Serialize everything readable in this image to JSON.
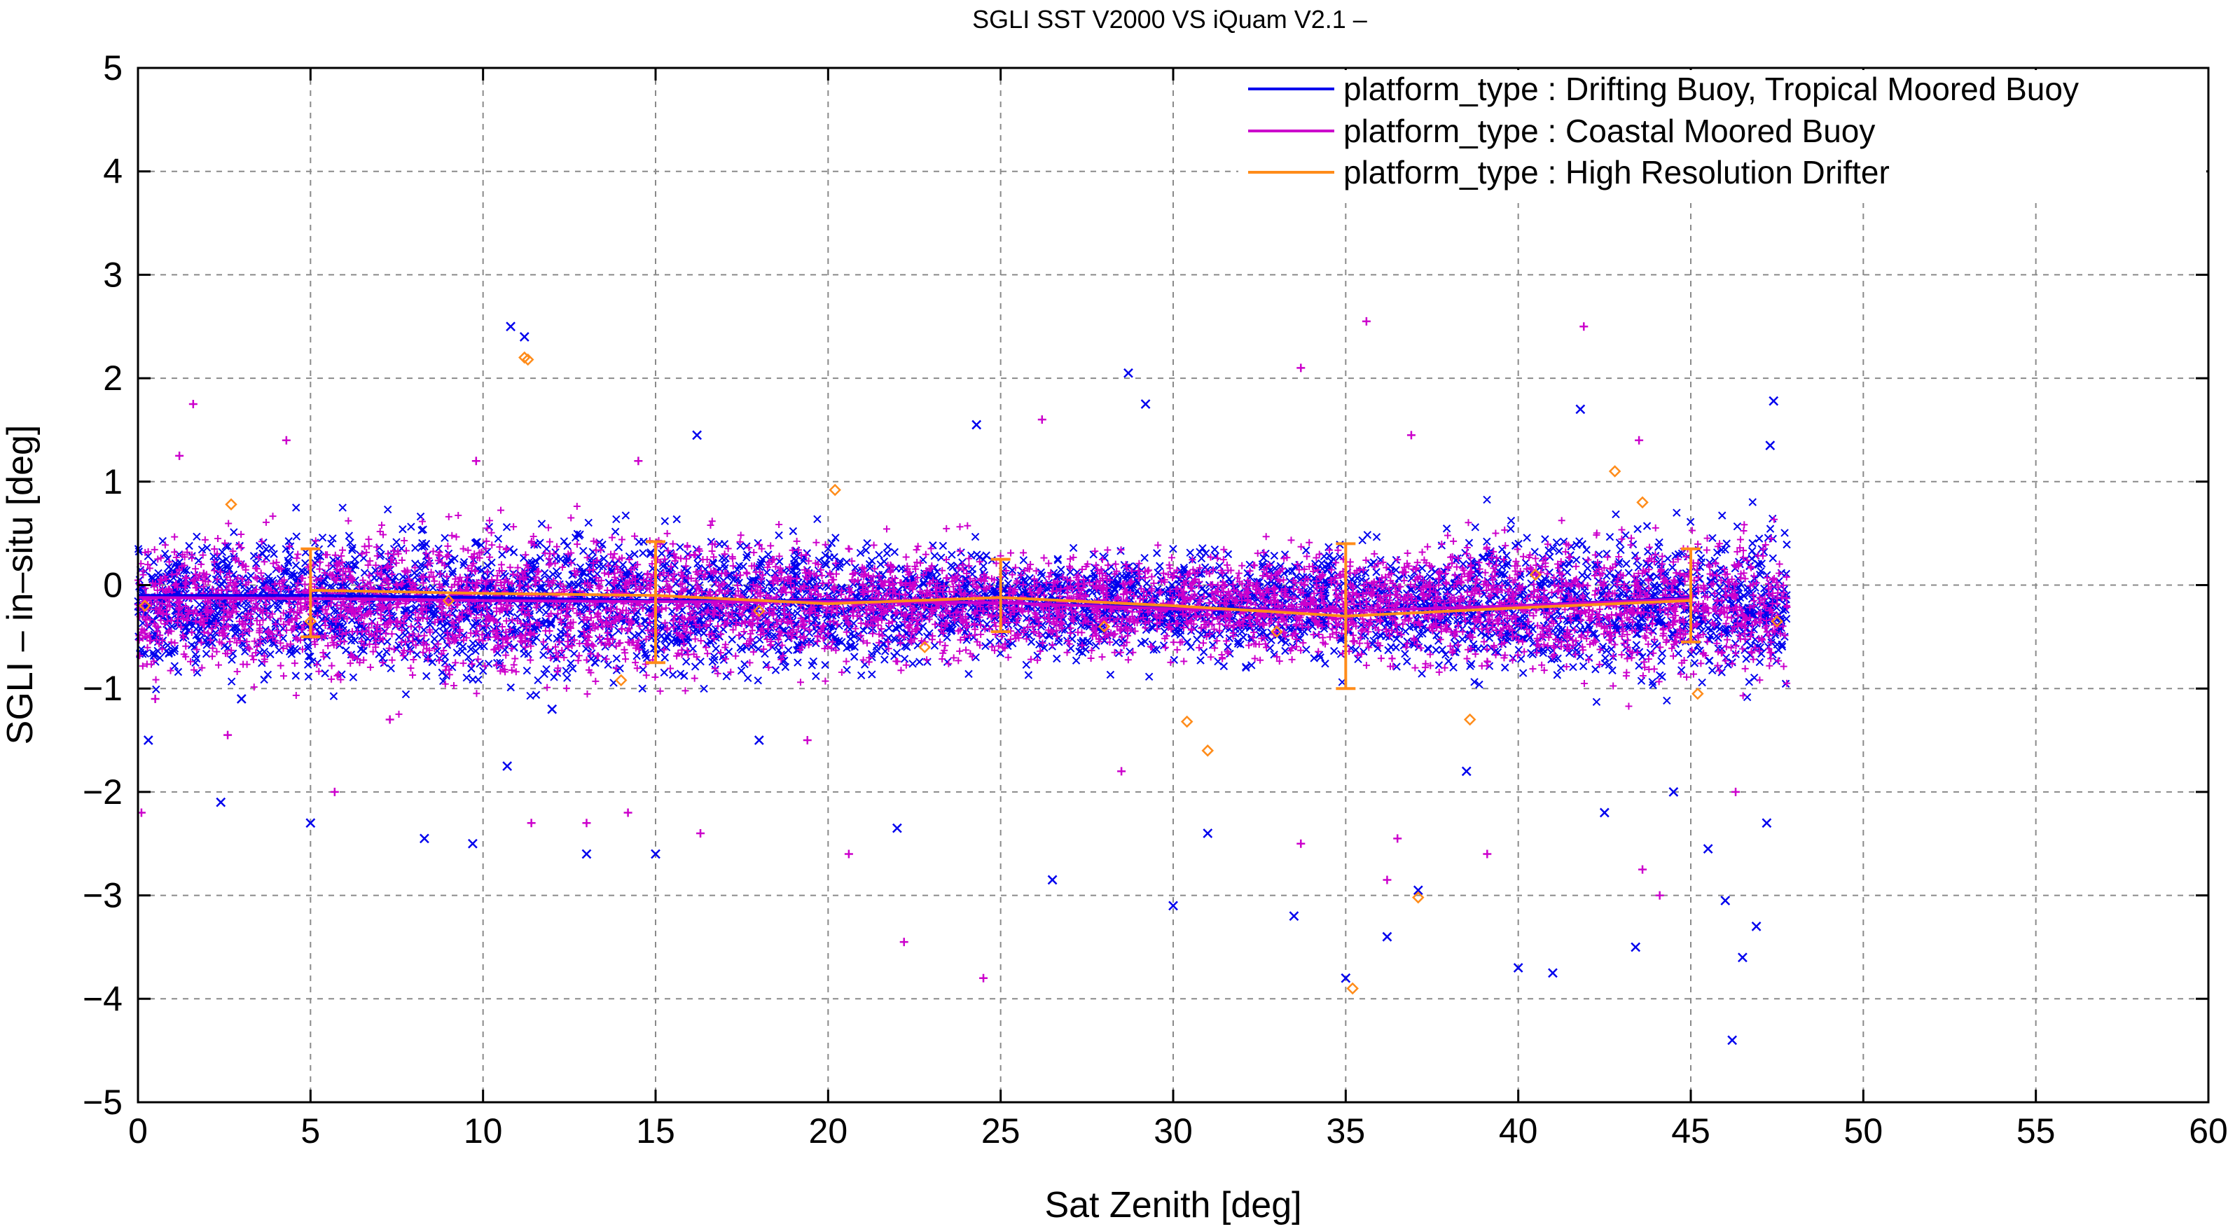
{
  "chart_data": {
    "type": "scatter",
    "title": "SGLI SST V2000 VS iQuam V2.1  –",
    "xlabel": "Sat Zenith [deg]",
    "ylabel": "SGLI – in–situ [deg]",
    "xlim": [
      0,
      60
    ],
    "ylim": [
      -5,
      5
    ],
    "x_ticks": [
      0,
      5,
      10,
      15,
      20,
      25,
      30,
      35,
      40,
      45,
      50,
      55,
      60
    ],
    "y_ticks": [
      -5,
      -4,
      -3,
      -2,
      -1,
      0,
      1,
      2,
      3,
      4,
      5
    ],
    "x_tick_labels": [
      "0",
      "5",
      "10",
      "15",
      "20",
      "25",
      "30",
      "35",
      "40",
      "45",
      "50",
      "55",
      "60"
    ],
    "y_tick_labels": [
      "−5",
      "−4",
      "−3",
      "−2",
      "−1",
      "0",
      "1",
      "2",
      "3",
      "4",
      "5"
    ],
    "grid": true,
    "legend_position": "top-right",
    "series": [
      {
        "name": "platform_type : Drifting Buoy, Tropical Moored Buoy",
        "color": "#0000ee",
        "marker": "x",
        "points": [
          [
            0.3,
            -1.5
          ],
          [
            10.8,
            2.5
          ],
          [
            11.2,
            2.4
          ],
          [
            28.7,
            2.05
          ],
          [
            29.2,
            1.75
          ],
          [
            24.3,
            1.55
          ],
          [
            16.2,
            1.45
          ],
          [
            41.8,
            1.7
          ],
          [
            47.4,
            1.78
          ],
          [
            47.3,
            1.35
          ],
          [
            13,
            -2.6
          ],
          [
            15,
            -2.6
          ],
          [
            8.3,
            -2.45
          ],
          [
            9.7,
            -2.5
          ],
          [
            5,
            -2.3
          ],
          [
            2.4,
            -2.1
          ],
          [
            10.7,
            -1.75
          ],
          [
            26.5,
            -2.85
          ],
          [
            30,
            -3.1
          ],
          [
            33.5,
            -3.2
          ],
          [
            35,
            -3.8
          ],
          [
            36.2,
            -3.4
          ],
          [
            37.1,
            -2.95
          ],
          [
            40,
            -3.7
          ],
          [
            41,
            -3.75
          ],
          [
            43.4,
            -3.5
          ],
          [
            45.5,
            -2.55
          ],
          [
            46,
            -3.05
          ],
          [
            46.2,
            -4.4
          ],
          [
            46.5,
            -3.6
          ],
          [
            46.9,
            -3.3
          ],
          [
            47.2,
            -2.3
          ],
          [
            44.5,
            -2.0
          ],
          [
            42.5,
            -2.2
          ],
          [
            38.5,
            -1.8
          ],
          [
            31,
            -2.4
          ],
          [
            22,
            -2.35
          ],
          [
            18,
            -1.5
          ],
          [
            12,
            -1.2
          ],
          [
            3,
            -1.1
          ]
        ],
        "mean_line": [
          [
            0,
            -0.1
          ],
          [
            5,
            -0.1
          ],
          [
            10,
            -0.12
          ],
          [
            15,
            -0.15
          ],
          [
            20,
            -0.15
          ],
          [
            25,
            -0.17
          ],
          [
            30,
            -0.22
          ],
          [
            35,
            -0.25
          ],
          [
            40,
            -0.2
          ],
          [
            45,
            -0.12
          ]
        ]
      },
      {
        "name": "platform_type : Coastal Moored Buoy",
        "color": "#cc00cc",
        "marker": "+",
        "points": [
          [
            1.6,
            1.75
          ],
          [
            4.3,
            1.4
          ],
          [
            1.2,
            1.25
          ],
          [
            9.8,
            1.2
          ],
          [
            14.5,
            1.2
          ],
          [
            26.2,
            1.6
          ],
          [
            33.7,
            2.1
          ],
          [
            35.6,
            2.55
          ],
          [
            41.9,
            2.5
          ],
          [
            36.9,
            1.45
          ],
          [
            43.5,
            1.4
          ],
          [
            0.1,
            -2.2
          ],
          [
            2.6,
            -1.45
          ],
          [
            5.7,
            -2.0
          ],
          [
            11.4,
            -2.3
          ],
          [
            13,
            -2.3
          ],
          [
            14.2,
            -2.2
          ],
          [
            16.3,
            -2.4
          ],
          [
            20.6,
            -2.6
          ],
          [
            22.2,
            -3.45
          ],
          [
            24.5,
            -3.8
          ],
          [
            33.7,
            -2.5
          ],
          [
            36.2,
            -2.85
          ],
          [
            36.5,
            -2.45
          ],
          [
            39.1,
            -2.6
          ],
          [
            44.1,
            -3.0
          ],
          [
            43.6,
            -2.75
          ],
          [
            46.3,
            -2.0
          ],
          [
            28.5,
            -1.8
          ],
          [
            19.4,
            -1.5
          ],
          [
            7.3,
            -1.3
          ],
          [
            0.5,
            -1.1
          ]
        ],
        "mean_line": [
          [
            0,
            -0.12
          ],
          [
            5,
            -0.13
          ],
          [
            10,
            -0.15
          ],
          [
            15,
            -0.16
          ],
          [
            20,
            -0.16
          ],
          [
            25,
            -0.17
          ],
          [
            30,
            -0.23
          ],
          [
            35,
            -0.25
          ],
          [
            40,
            -0.2
          ],
          [
            45,
            -0.13
          ]
        ]
      },
      {
        "name": "platform_type : High Resolution Drifter",
        "color": "#ff8c1a",
        "marker": "diamond",
        "points": [
          [
            11.2,
            2.2
          ],
          [
            11.3,
            2.18
          ],
          [
            2.7,
            0.78
          ],
          [
            20.2,
            0.92
          ],
          [
            42.8,
            1.1
          ],
          [
            43.6,
            0.8
          ],
          [
            0.2,
            -0.2
          ],
          [
            5,
            -0.35
          ],
          [
            14,
            -0.92
          ],
          [
            30.4,
            -1.32
          ],
          [
            31,
            -1.6
          ],
          [
            37.1,
            -3.02
          ],
          [
            35.2,
            -3.9
          ],
          [
            38.6,
            -1.3
          ],
          [
            45.2,
            -1.05
          ],
          [
            47.5,
            -0.35
          ],
          [
            22.8,
            -0.6
          ],
          [
            28,
            -0.4
          ],
          [
            33,
            -0.45
          ],
          [
            9,
            -0.15
          ],
          [
            18,
            -0.25
          ],
          [
            40.5,
            0.1
          ]
        ],
        "mean_line": [
          [
            5,
            -0.05
          ],
          [
            10,
            -0.08
          ],
          [
            15,
            -0.1
          ],
          [
            20,
            -0.18
          ],
          [
            25,
            -0.12
          ],
          [
            30,
            -0.2
          ],
          [
            35,
            -0.3
          ],
          [
            40,
            -0.22
          ],
          [
            45,
            -0.15
          ]
        ],
        "error_bars": [
          [
            5,
            -0.5,
            0.35
          ],
          [
            15,
            -0.75,
            0.42
          ],
          [
            25,
            -0.45,
            0.25
          ],
          [
            35,
            -1.0,
            0.4
          ],
          [
            45,
            -0.55,
            0.35
          ]
        ]
      }
    ]
  }
}
